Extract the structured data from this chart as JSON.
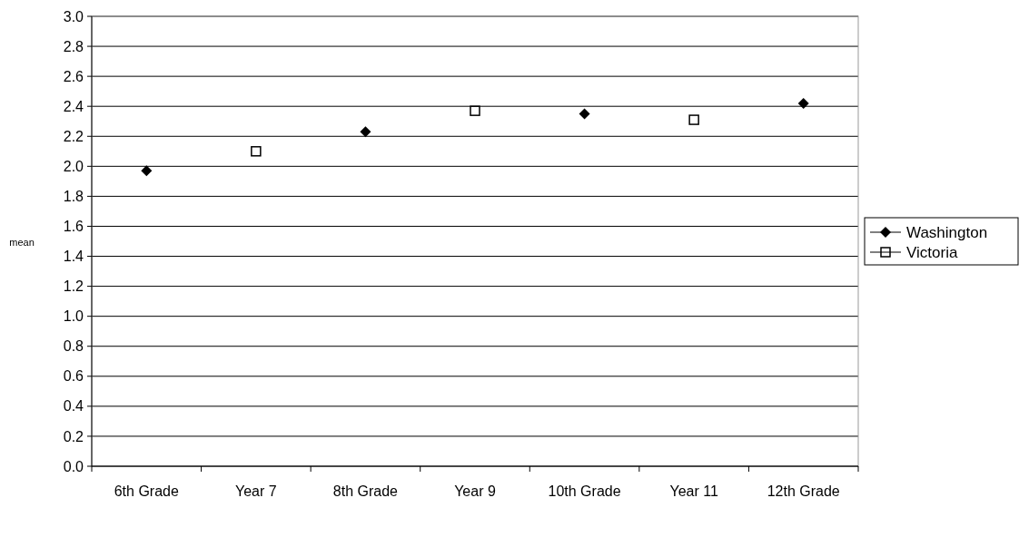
{
  "chart_data": {
    "type": "scatter",
    "ylabel": "mean",
    "categories": [
      "6th Grade",
      "Year 7",
      "8th Grade",
      "Year 9",
      "10th Grade",
      "Year 11",
      "12th Grade"
    ],
    "series": [
      {
        "name": "Washington",
        "color": "#000000",
        "marker": "diamond",
        "values": [
          1.97,
          null,
          2.23,
          null,
          2.35,
          null,
          2.42
        ]
      },
      {
        "name": "Victoria",
        "color": "#000000",
        "marker": "square",
        "values": [
          null,
          2.1,
          null,
          2.37,
          null,
          2.31,
          null
        ]
      }
    ],
    "ylim": [
      0,
      3
    ],
    "yticks": [
      {
        "value": 0,
        "label": "0.0"
      },
      0.2,
      0.4,
      0.6,
      0.8,
      {
        "value": 1,
        "label": "1.0"
      },
      1.2,
      1.4,
      1.6,
      1.8,
      {
        "value": 2,
        "label": "2.0"
      },
      2.2,
      2.4,
      2.6,
      2.8,
      {
        "value": 3,
        "label": "3.0"
      }
    ],
    "grid": "y",
    "legend": "right"
  }
}
